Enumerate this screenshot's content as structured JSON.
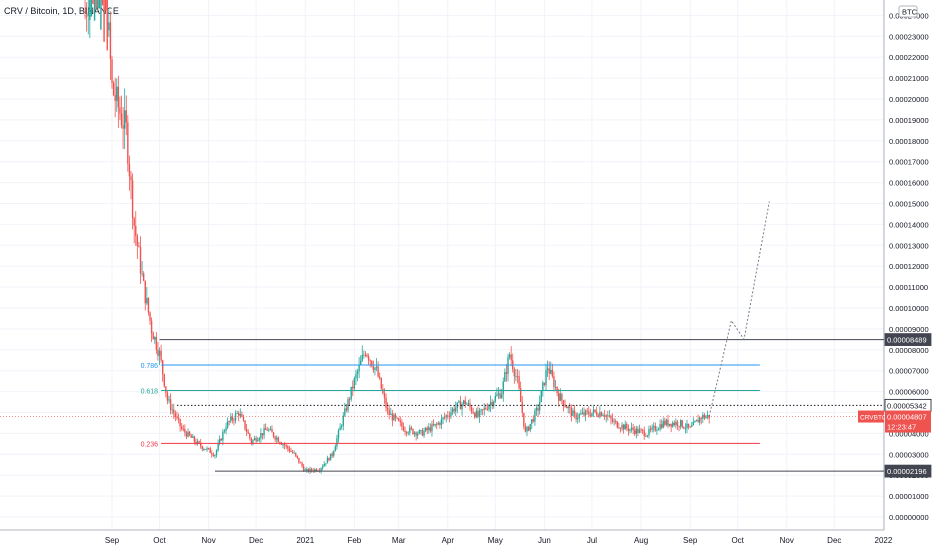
{
  "header": {
    "title": "CRV / Bitcoin, 1D, BINANCE"
  },
  "price_axis": {
    "currency": "BTC",
    "ticks": [
      "0.00000000",
      "0.00001000",
      "0.00002000",
      "0.00003000",
      "0.00004000",
      "0.00005000",
      "0.00006000",
      "0.00007000",
      "0.00008000",
      "0.00009000",
      "0.00010000",
      "0.00011000",
      "0.00012000",
      "0.00013000",
      "0.00014000",
      "0.00015000",
      "0.00016000",
      "0.00017000",
      "0.00018000",
      "0.00019000",
      "0.00020000",
      "0.00021000",
      "0.00022000",
      "0.00023000",
      "0.00024000"
    ]
  },
  "time_axis": {
    "labels": [
      "Sep",
      "Oct",
      "Nov",
      "Dec",
      "2021",
      "Feb",
      "Mar",
      "Apr",
      "May",
      "Jun",
      "Jul",
      "Aug",
      "Sep",
      "Oct",
      "Nov",
      "Dec",
      "2022"
    ]
  },
  "price_labels": [
    {
      "name": "resistance-label",
      "text": "0.00008489",
      "value": 8.489e-05,
      "bg": "#434651",
      "fg": "#ffffff"
    },
    {
      "name": "dotted-level-label",
      "text": "0.00005342",
      "value": 5.342e-05,
      "bg": "#ffffff",
      "fg": "#131722"
    },
    {
      "name": "support-label",
      "text": "0.00002196",
      "value": 2.196e-05,
      "bg": "#434651",
      "fg": "#ffffff"
    }
  ],
  "last_price": {
    "symbol": "CRVBTC",
    "price": "0.00004807",
    "countdown": "12:23:47",
    "value": 4.807e-05,
    "color": "#ef5350"
  },
  "fib_levels": [
    {
      "label": "0.786",
      "value": 7.27e-05,
      "color": "#2196f3"
    },
    {
      "label": "0.618",
      "value": 6.05e-05,
      "color": "#26a69a"
    },
    {
      "label": "0.236",
      "value": 3.52e-05,
      "color": "#f23645"
    }
  ],
  "horizontal_lines": [
    {
      "name": "resistance-line",
      "value": 8.489e-05,
      "color": "#434651",
      "style": "solid"
    },
    {
      "name": "dotted-level-line",
      "value": 5.342e-05,
      "color": "#131722",
      "style": "dotted"
    },
    {
      "name": "support-line",
      "value": 2.196e-05,
      "color": "#434651",
      "style": "solid"
    }
  ],
  "colors": {
    "up": "#26a69a",
    "down": "#ef5350",
    "grid": "#f0f3fa",
    "axis_text": "#131722",
    "projection": "#787b86"
  },
  "chart_data": {
    "type": "candlestick",
    "title": "CRV / Bitcoin, 1D, BINANCE",
    "y_unit": "BTC",
    "ylim": [
      0,
      0.000245
    ],
    "x_range": [
      "2020-08-15",
      "2022-01-15"
    ],
    "grid": true,
    "price_path": [
      [
        "2020-08-15",
        0.00024
      ],
      [
        "2020-08-25",
        0.00029
      ],
      [
        "2020-09-01",
        0.000205
      ],
      [
        "2020-09-10",
        0.000185
      ],
      [
        "2020-09-15",
        0.00014
      ],
      [
        "2020-09-21",
        0.00011
      ],
      [
        "2020-09-26",
        9e-05
      ],
      [
        "2020-10-01",
        7.8e-05
      ],
      [
        "2020-10-06",
        5.6e-05
      ],
      [
        "2020-10-15",
        4.2e-05
      ],
      [
        "2020-10-25",
        3.5e-05
      ],
      [
        "2020-11-05",
        3e-05
      ],
      [
        "2020-11-12",
        4.4e-05
      ],
      [
        "2020-11-20",
        5e-05
      ],
      [
        "2020-11-28",
        3.6e-05
      ],
      [
        "2020-12-08",
        4.2e-05
      ],
      [
        "2020-12-18",
        3.5e-05
      ],
      [
        "2020-12-25",
        3e-05
      ],
      [
        "2021-01-01",
        2.2e-05
      ],
      [
        "2021-01-10",
        2.3e-05
      ],
      [
        "2021-01-18",
        3e-05
      ],
      [
        "2021-01-24",
        4.5e-05
      ],
      [
        "2021-02-01",
        6.5e-05
      ],
      [
        "2021-02-08",
        8e-05
      ],
      [
        "2021-02-15",
        7e-05
      ],
      [
        "2021-02-22",
        5e-05
      ],
      [
        "2021-03-05",
        4.2e-05
      ],
      [
        "2021-03-15",
        4e-05
      ],
      [
        "2021-03-25",
        4.4e-05
      ],
      [
        "2021-04-05",
        5.2e-05
      ],
      [
        "2021-04-12",
        5.5e-05
      ],
      [
        "2021-04-20",
        4.8e-05
      ],
      [
        "2021-04-28",
        5.5e-05
      ],
      [
        "2021-05-05",
        6e-05
      ],
      [
        "2021-05-10",
        7.8e-05
      ],
      [
        "2021-05-15",
        6.5e-05
      ],
      [
        "2021-05-20",
        4e-05
      ],
      [
        "2021-05-28",
        5.2e-05
      ],
      [
        "2021-06-03",
        7.2e-05
      ],
      [
        "2021-06-10",
        5.8e-05
      ],
      [
        "2021-06-20",
        4.8e-05
      ],
      [
        "2021-07-01",
        5e-05
      ],
      [
        "2021-07-08",
        5e-05
      ],
      [
        "2021-07-15",
        4.5e-05
      ],
      [
        "2021-07-25",
        4.2e-05
      ],
      [
        "2021-08-05",
        4e-05
      ],
      [
        "2021-08-15",
        4.5e-05
      ],
      [
        "2021-08-25",
        4.5e-05
      ],
      [
        "2021-09-01",
        4.2e-05
      ],
      [
        "2021-09-08",
        4.8e-05
      ],
      [
        "2021-09-13",
        4.81e-05
      ]
    ],
    "projection": [
      [
        "2021-09-13",
        4.81e-05
      ],
      [
        "2021-09-27",
        9.4e-05
      ],
      [
        "2021-10-05",
        8.5e-05
      ],
      [
        "2021-10-21",
        0.000151
      ]
    ],
    "levels": [
      {
        "value": 8.489e-05,
        "label": "0.00008489"
      },
      {
        "value": 5.342e-05,
        "label": "0.00005342"
      },
      {
        "value": 2.196e-05,
        "label": "0.00002196"
      }
    ],
    "fib_retracement": [
      {
        "ratio": "0.786",
        "value": 7.27e-05
      },
      {
        "ratio": "0.618",
        "value": 6.05e-05
      },
      {
        "ratio": "0.236",
        "value": 3.52e-05
      }
    ],
    "last_value": 4.807e-05
  }
}
